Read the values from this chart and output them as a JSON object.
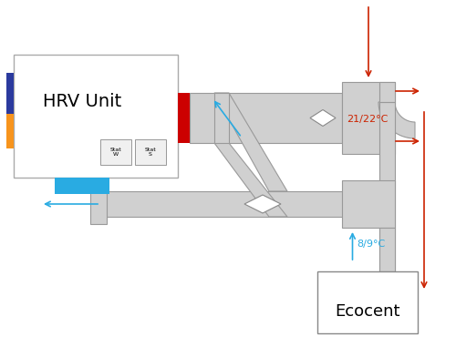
{
  "bg_color": "#ffffff",
  "duct_color": "#d0d0d0",
  "duct_edge": "#999999",
  "duct_lw": 0.8,
  "blue_stripe": "#2b3a9e",
  "orange_stripe": "#f7941d",
  "blue_rect": "#29abe2",
  "red_block": "#cc0000",
  "red_color": "#cc2200",
  "blue_color": "#29abe2",
  "hrv_label": "HRV Unit",
  "temp_top": "21/22°C",
  "temp_bot": "8/9°C",
  "ecocent_label": "Ecocent",
  "stat_labels": [
    "Stat\nW",
    "Stat\nS"
  ],
  "figw": 5.0,
  "figh": 3.81,
  "dpi": 100
}
